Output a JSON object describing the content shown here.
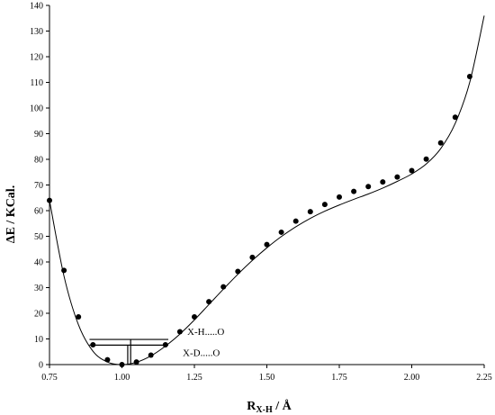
{
  "chart_data": {
    "type": "scatter",
    "ylabel": "ΔE / KCal.",
    "xlabel": {
      "main": "R",
      "subscript": "X-H",
      "suffix": " / Å"
    },
    "xlim": [
      0.75,
      2.25
    ],
    "ylim": [
      0,
      140
    ],
    "xticks": [
      0.75,
      1.0,
      1.25,
      1.5,
      1.75,
      2.0,
      2.25
    ],
    "xtick_labels": [
      "0.75",
      "1.00",
      "1.25",
      "1.50",
      "1.75",
      "2.00",
      "2.25"
    ],
    "yticks": [
      0,
      10,
      20,
      30,
      40,
      50,
      60,
      70,
      80,
      90,
      100,
      110,
      120,
      130,
      140
    ],
    "ytick_labels": [
      "0",
      "10",
      "20",
      "30",
      "40",
      "50",
      "60",
      "70",
      "80",
      "90",
      "100",
      "110",
      "120",
      "130",
      "140"
    ],
    "grid": false,
    "legend": "none",
    "series": [
      {
        "marker": "filled-circle",
        "x": [
          0.75,
          0.8,
          0.85,
          0.9,
          0.95,
          1.0,
          1.05,
          1.1,
          1.15,
          1.2,
          1.25,
          1.3,
          1.35,
          1.4,
          1.45,
          1.5,
          1.55,
          1.6,
          1.65,
          1.7,
          1.75,
          1.8,
          1.85,
          1.9,
          1.95,
          2.0,
          2.05,
          2.1,
          2.15,
          2.2
        ],
        "y": [
          64.0,
          36.7,
          18.6,
          7.7,
          1.9,
          0.0,
          1.0,
          3.7,
          7.7,
          12.8,
          18.6,
          24.5,
          30.3,
          36.3,
          41.8,
          46.8,
          51.6,
          55.9,
          59.6,
          62.4,
          65.3,
          67.5,
          69.4,
          71.2,
          73.1,
          75.6,
          80.1,
          86.4,
          96.4,
          112.3
        ]
      },
      {
        "style": "line",
        "x": [
          0.75,
          0.8,
          0.85,
          0.9,
          0.95,
          1.0,
          1.05,
          1.1,
          1.15,
          1.2,
          1.25,
          1.3,
          1.35,
          1.4,
          1.45,
          1.5,
          1.55,
          1.6,
          1.65,
          1.7,
          1.75,
          1.8,
          1.85,
          1.9,
          1.95,
          2.0,
          2.05,
          2.1,
          2.15,
          2.2,
          2.25
        ],
        "y": [
          64.0,
          34.5,
          15.5,
          5.2,
          1.0,
          0.0,
          0.9,
          3.4,
          7.2,
          11.9,
          17.4,
          23.4,
          29.4,
          35.2,
          40.6,
          45.5,
          49.9,
          53.7,
          57.0,
          59.8,
          62.2,
          64.4,
          66.5,
          68.8,
          71.4,
          74.3,
          78.2,
          84.2,
          94.0,
          110.0,
          136.0
        ]
      }
    ],
    "annotations": [
      {
        "text": "X-H.....O",
        "level_y": 9.8,
        "x_from": 0.888,
        "x_to": 1.16,
        "drop_x": 1.03
      },
      {
        "text": "X-D.....O",
        "level_y": 7.6,
        "x_from": 0.888,
        "x_to": 1.16,
        "drop_x": 1.02
      }
    ]
  }
}
